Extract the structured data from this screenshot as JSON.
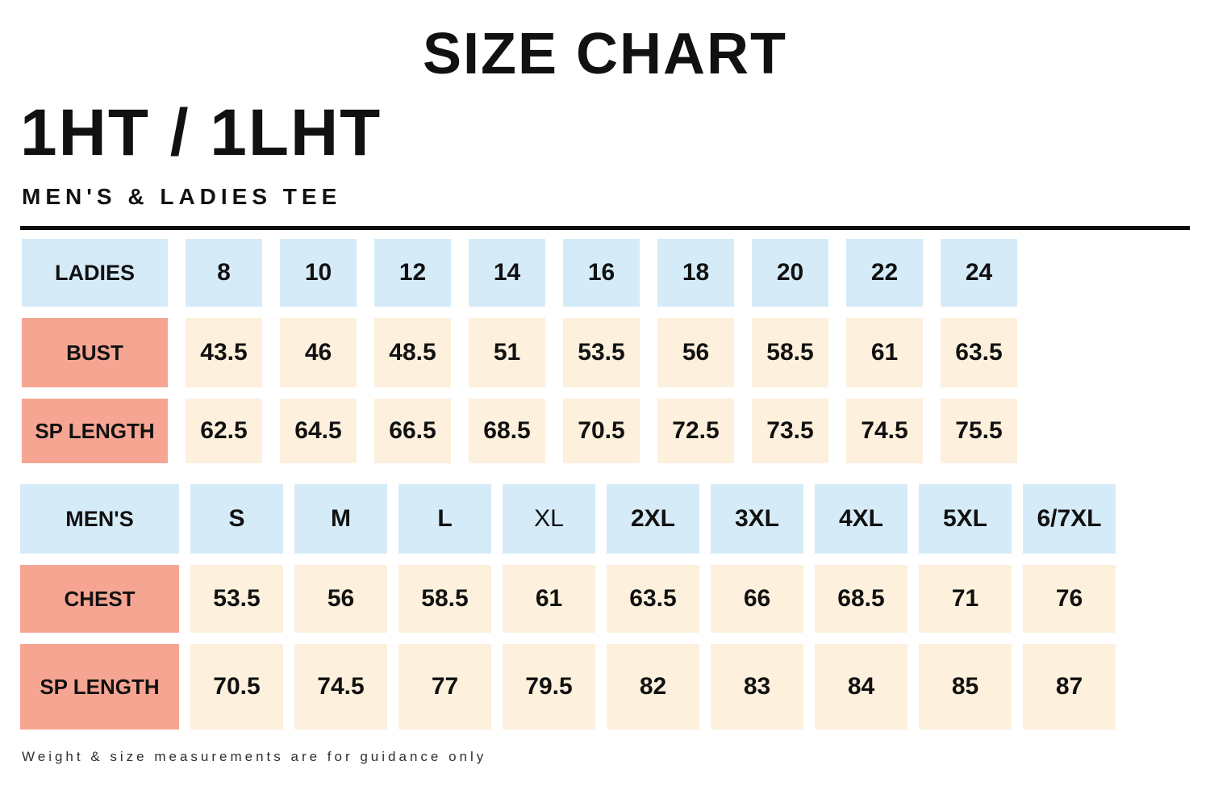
{
  "page": {
    "title": "SIZE CHART",
    "product_code": "1HT / 1LHT",
    "subtitle": "MEN'S & LADIES TEE",
    "footnote": "Weight & size measurements are for guidance only"
  },
  "colors": {
    "size_header_cell": "#d6ebf8",
    "measure_label_cell": "#f6a592",
    "value_cell": "#fdf0dd",
    "divider": "#0d0d0d",
    "text": "#111111"
  },
  "ladies_table": {
    "header_label": "LADIES",
    "sizes": [
      "8",
      "10",
      "12",
      "14",
      "16",
      "18",
      "20",
      "22",
      "24"
    ],
    "light_sizes": [],
    "rows": [
      {
        "label": "BUST",
        "values": [
          "43.5",
          "46",
          "48.5",
          "51",
          "53.5",
          "56",
          "58.5",
          "61",
          "63.5"
        ]
      },
      {
        "label": "SP LENGTH",
        "values": [
          "62.5",
          "64.5",
          "66.5",
          "68.5",
          "70.5",
          "72.5",
          "73.5",
          "74.5",
          "75.5"
        ]
      }
    ]
  },
  "mens_table": {
    "header_label": "MEN'S",
    "sizes": [
      "S",
      "M",
      "L",
      "XL",
      "2XL",
      "3XL",
      "4XL",
      "5XL",
      "6/7XL"
    ],
    "light_sizes": [
      "XL"
    ],
    "rows": [
      {
        "label": "CHEST",
        "values": [
          "53.5",
          "56",
          "58.5",
          "61",
          "63.5",
          "66",
          "68.5",
          "71",
          "76"
        ]
      },
      {
        "label": "SP LENGTH",
        "values": [
          "70.5",
          "74.5",
          "77",
          "79.5",
          "82",
          "83",
          "84",
          "85",
          "87"
        ]
      }
    ]
  },
  "chart_data": [
    {
      "type": "table",
      "title": "SIZE CHART 1HT / 1LHT MEN'S & LADIES TEE - Ladies",
      "columns": [
        "LADIES",
        "8",
        "10",
        "12",
        "14",
        "16",
        "18",
        "20",
        "22",
        "24"
      ],
      "rows": [
        [
          "BUST",
          "43.5",
          "46",
          "48.5",
          "51",
          "53.5",
          "56",
          "58.5",
          "61",
          "63.5"
        ],
        [
          "SP LENGTH",
          "62.5",
          "64.5",
          "66.5",
          "68.5",
          "70.5",
          "72.5",
          "73.5",
          "74.5",
          "75.5"
        ]
      ]
    },
    {
      "type": "table",
      "title": "SIZE CHART 1HT / 1LHT MEN'S & LADIES TEE - Men's",
      "columns": [
        "MEN'S",
        "S",
        "M",
        "L",
        "XL",
        "2XL",
        "3XL",
        "4XL",
        "5XL",
        "6/7XL"
      ],
      "rows": [
        [
          "CHEST",
          "53.5",
          "56",
          "58.5",
          "61",
          "63.5",
          "66",
          "68.5",
          "71",
          "76"
        ],
        [
          "SP LENGTH",
          "70.5",
          "74.5",
          "77",
          "79.5",
          "82",
          "83",
          "84",
          "85",
          "87"
        ]
      ]
    }
  ]
}
